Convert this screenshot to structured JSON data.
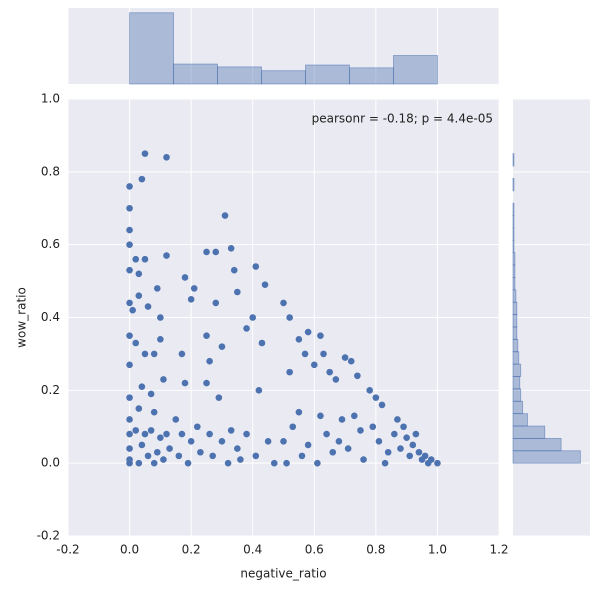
{
  "chart_data": [
    {
      "type": "histogram",
      "orientation": "vertical",
      "color": "#4c72b0",
      "bins": [
        0,
        0.142857,
        0.285714,
        0.428571,
        0.571429,
        0.714286,
        0.857143,
        1.0
      ],
      "values": [
        150,
        42,
        36,
        28,
        40,
        34,
        60
      ],
      "ylim": [
        0,
        160
      ]
    },
    {
      "type": "scatter",
      "color": "#4c72b0",
      "grid": true,
      "xlabel": "negative_ratio",
      "ylabel": "wow_ratio",
      "annotation": "pearsonr = -0.18; p = 4.4e-05",
      "xlim": [
        -0.2,
        1.2
      ],
      "ylim": [
        -0.2,
        1.0
      ],
      "xticks": [
        -0.2,
        {
          "value": 0,
          "label": "0.0"
        },
        0.2,
        0.4,
        0.6,
        0.8,
        {
          "value": 1,
          "label": "1.0"
        },
        1.2
      ],
      "yticks": [
        -0.2,
        {
          "value": 0,
          "label": "0.0"
        },
        0.2,
        0.4,
        0.6,
        0.8,
        {
          "value": 1,
          "label": "1.0"
        }
      ],
      "x": [
        0,
        0,
        0,
        0,
        0,
        0,
        0,
        0,
        0,
        0,
        0,
        0,
        0,
        0,
        0.05,
        0.04,
        0.12,
        0.02,
        0.05,
        0.03,
        0.03,
        0.06,
        0.09,
        0.1,
        0.12,
        0.01,
        0.02,
        0.05,
        0.08,
        0.1,
        0.04,
        0.07,
        0.11,
        0.03,
        0.08,
        0.02,
        0.05,
        0.07,
        0.1,
        0.12,
        0.04,
        0.06,
        0.09,
        0.11,
        0.13,
        0.03,
        0.08,
        0.18,
        0.2,
        0.21,
        0.17,
        0.18,
        0.15,
        0.17,
        0.2,
        0.22,
        0.16,
        0.19,
        0.23,
        0.25,
        0.28,
        0.31,
        0.33,
        0.34,
        0.28,
        0.25,
        0.3,
        0.26,
        0.25,
        0.29,
        0.26,
        0.3,
        0.33,
        0.27,
        0.32,
        0.35,
        0.38,
        0.35,
        0.41,
        0.44,
        0.4,
        0.43,
        0.42,
        0.38,
        0.41,
        0.45,
        0.47,
        0.36,
        0.5,
        0.52,
        0.55,
        0.58,
        0.57,
        0.52,
        0.55,
        0.5,
        0.53,
        0.56,
        0.51,
        0.58,
        0.6,
        0.62,
        0.63,
        0.65,
        0.67,
        0.62,
        0.64,
        0.66,
        0.61,
        0.68,
        0.7,
        0.72,
        0.74,
        0.73,
        0.75,
        0.71,
        0.76,
        0.69,
        0.78,
        0.8,
        0.82,
        0.79,
        0.81,
        0.84,
        0.83,
        0.86,
        0.87,
        0.89,
        0.9,
        0.92,
        0.91,
        0.94,
        0.95,
        0.96,
        0.97,
        0.98,
        1,
        0.93,
        0.88
      ],
      "y": [
        0.76,
        0.7,
        0.64,
        0.6,
        0.53,
        0.44,
        0.35,
        0.27,
        0.18,
        0.12,
        0.08,
        0.04,
        0.01,
        0,
        0.85,
        0.78,
        0.84,
        0.56,
        0.56,
        0.52,
        0.46,
        0.43,
        0.48,
        0.4,
        0.57,
        0.42,
        0.33,
        0.3,
        0.3,
        0.34,
        0.21,
        0.19,
        0.23,
        0.15,
        0.14,
        0.09,
        0.08,
        0.09,
        0.07,
        0.08,
        0.05,
        0.02,
        0.03,
        0.01,
        0.04,
        0,
        0,
        0.51,
        0.45,
        0.48,
        0.3,
        0.22,
        0.12,
        0.08,
        0.06,
        0.1,
        0.02,
        0,
        0.03,
        0.58,
        0.58,
        0.68,
        0.59,
        0.53,
        0.44,
        0.35,
        0.32,
        0.28,
        0.22,
        0.18,
        0.08,
        0.06,
        0.09,
        0.02,
        0,
        0.04,
        0.37,
        0.47,
        0.54,
        0.49,
        0.4,
        0.33,
        0.2,
        0.08,
        0.02,
        0.06,
        0,
        0.01,
        0.44,
        0.4,
        0.34,
        0.36,
        0.3,
        0.25,
        0.14,
        0.06,
        0.1,
        0.02,
        0,
        0.05,
        0.27,
        0.35,
        0.3,
        0.25,
        0.23,
        0.13,
        0.08,
        0.03,
        0,
        0.06,
        0.29,
        0.28,
        0.24,
        0.13,
        0.09,
        0.04,
        0.01,
        0.12,
        0.2,
        0.18,
        0.16,
        0.1,
        0.06,
        0.03,
        0,
        0.08,
        0.12,
        0.1,
        0.07,
        0.05,
        0.02,
        0.03,
        0.01,
        0.02,
        0,
        0.01,
        0,
        0.08,
        0.04
      ]
    },
    {
      "type": "histogram",
      "orientation": "horizontal",
      "color": "#4c72b0",
      "bins": [
        0,
        0.034,
        0.068,
        0.102,
        0.136,
        0.17,
        0.204,
        0.238,
        0.272,
        0.306,
        0.34,
        0.374,
        0.408,
        0.442,
        0.476,
        0.51,
        0.544,
        0.578,
        0.612,
        0.646,
        0.68,
        0.714,
        0.748,
        0.782,
        0.816,
        0.85
      ],
      "values": [
        70,
        50,
        33,
        15,
        10,
        8,
        7,
        8,
        6,
        5,
        4,
        4,
        4,
        3,
        2,
        2,
        2,
        1,
        1,
        1,
        1,
        0,
        1,
        0,
        1
      ],
      "xlim": [
        0,
        80
      ]
    }
  ]
}
